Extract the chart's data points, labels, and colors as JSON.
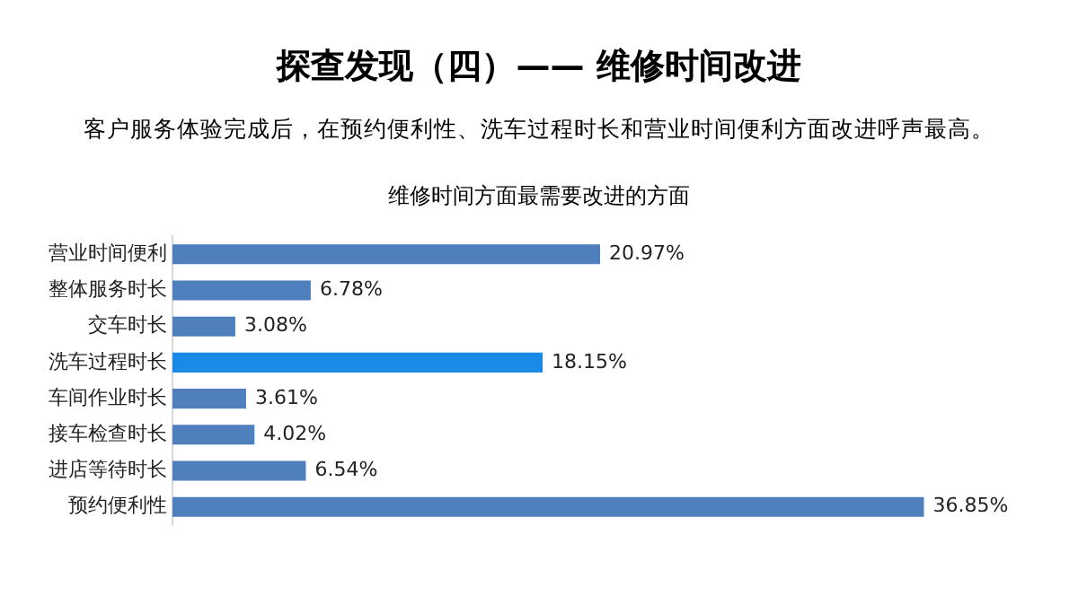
{
  "chart_data": {
    "type": "bar",
    "orientation": "horizontal",
    "title": "探查发现（四）—— 维修时间改进",
    "subtitle": "客户服务体验完成后，在预约便利性、洗车过程时长和营业时间便利方面改进呼声最高。",
    "annotations": [
      "维修时间方面最需要改进的方面"
    ],
    "categories": [
      "营业时间便利",
      "整体服务时长",
      "交车时长",
      "洗车过程时长",
      "车间作业时长",
      "接车检查时长",
      "进店等待时长",
      "预约便利性"
    ],
    "values": [
      20.97,
      6.78,
      3.08,
      18.15,
      3.61,
      4.02,
      6.54,
      36.85
    ],
    "value_labels": [
      "20.97%",
      "6.78%",
      "3.08%",
      "18.15%",
      "3.61%",
      "4.02%",
      "6.54%",
      "36.85%"
    ],
    "colors": [
      "#4f7fbd",
      "#4f7fbd",
      "#4f7fbd",
      "#1a8ae6",
      "#4f7fbd",
      "#4f7fbd",
      "#4f7fbd",
      "#4f7fbd"
    ],
    "tick_labels": "y",
    "grid": false,
    "legend": false
  }
}
